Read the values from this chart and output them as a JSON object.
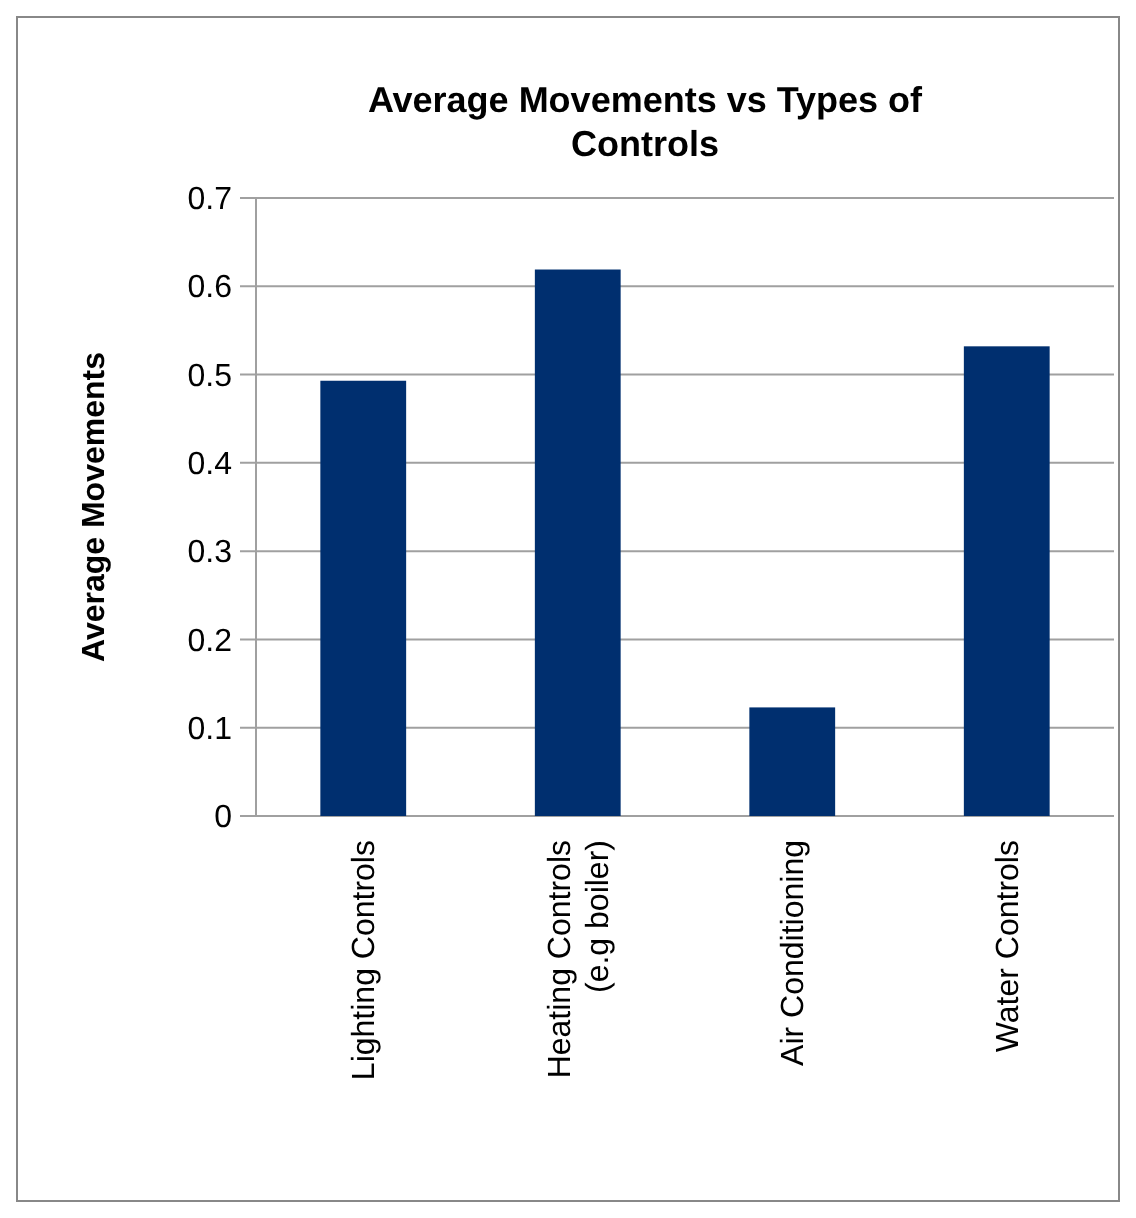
{
  "chart_data": {
    "type": "bar",
    "title": "Average Movements vs Types of Controls",
    "ylabel": "Average Movements",
    "categories": [
      "Lighting Controls",
      "Heating Controls\n(e.g boiler)",
      "Air Conditioning",
      "Water Controls"
    ],
    "values": [
      0.493,
      0.619,
      0.123,
      0.532
    ],
    "color": "#002f6f",
    "ylim": [
      0,
      0.7
    ],
    "yticks": [
      0,
      0.1,
      0.2,
      0.3,
      0.4,
      0.5,
      0.6,
      0.7
    ],
    "grid": "y"
  }
}
